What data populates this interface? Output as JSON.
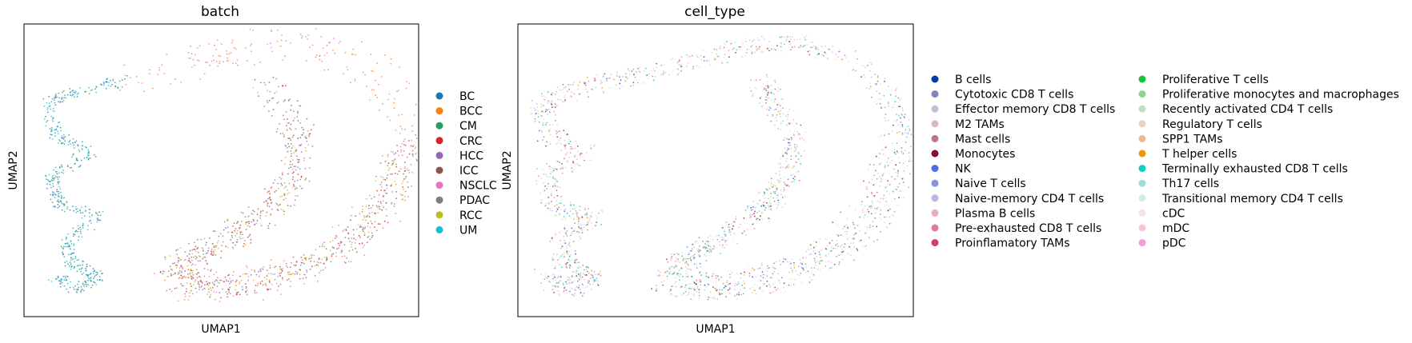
{
  "chart_data": [
    {
      "type": "scatter",
      "title": "batch",
      "xlabel": "UMAP1",
      "ylabel": "UMAP2",
      "grid": false,
      "legend_position": "right",
      "series": [
        {
          "name": "BC",
          "color": "#1f77b4"
        },
        {
          "name": "BCC",
          "color": "#ff7f0e"
        },
        {
          "name": "CM",
          "color": "#279e68"
        },
        {
          "name": "CRC",
          "color": "#d62728"
        },
        {
          "name": "HCC",
          "color": "#9467bd"
        },
        {
          "name": "ICC",
          "color": "#8c564b"
        },
        {
          "name": "NSCLC",
          "color": "#e377c2"
        },
        {
          "name": "PDAC",
          "color": "#7f7f7f"
        },
        {
          "name": "RCC",
          "color": "#bcbd22"
        },
        {
          "name": "UM",
          "color": "#17becf"
        }
      ]
    },
    {
      "type": "scatter",
      "title": "cell_type",
      "xlabel": "UMAP1",
      "ylabel": "UMAP2",
      "grid": false,
      "legend_position": "right",
      "legend_columns": 2,
      "series": [
        {
          "name": "B cells",
          "color": "#023fa5"
        },
        {
          "name": "Cytotoxic CD8 T cells",
          "color": "#7d87b9"
        },
        {
          "name": "Effector memory CD8 T cells",
          "color": "#bec1d4"
        },
        {
          "name": "M2 TAMs",
          "color": "#d6bcc0"
        },
        {
          "name": "Mast cells",
          "color": "#bb7784"
        },
        {
          "name": "Monocytes",
          "color": "#8e063b"
        },
        {
          "name": "NK",
          "color": "#4a6fe3"
        },
        {
          "name": "Naive T cells",
          "color": "#8595e1"
        },
        {
          "name": "Naive-memory CD4 T cells",
          "color": "#b5bbe3"
        },
        {
          "name": "Plasma B cells",
          "color": "#e6afb9"
        },
        {
          "name": "Pre-exhausted CD8 T cells",
          "color": "#e07b91"
        },
        {
          "name": "Proinflamatory TAMs",
          "color": "#d33f6a"
        },
        {
          "name": "Proliferative T cells",
          "color": "#11c638"
        },
        {
          "name": "Proliferative monocytes and macrophages",
          "color": "#8dd593"
        },
        {
          "name": "Recently activated CD4 T cells",
          "color": "#c6dec7"
        },
        {
          "name": "Regulatory T cells",
          "color": "#ead3c6"
        },
        {
          "name": "SPP1 TAMs",
          "color": "#f0b98d"
        },
        {
          "name": "T helper cells",
          "color": "#ef9708"
        },
        {
          "name": "Terminally exhausted CD8 T cells",
          "color": "#0fcfc0"
        },
        {
          "name": "Th17 cells",
          "color": "#9cded6"
        },
        {
          "name": "Transitional memory CD4 T cells",
          "color": "#d5eae7"
        },
        {
          "name": "cDC",
          "color": "#f3e1eb"
        },
        {
          "name": "mDC",
          "color": "#f6c4e1"
        },
        {
          "name": "pDC",
          "color": "#f79cd4"
        }
      ]
    }
  ]
}
